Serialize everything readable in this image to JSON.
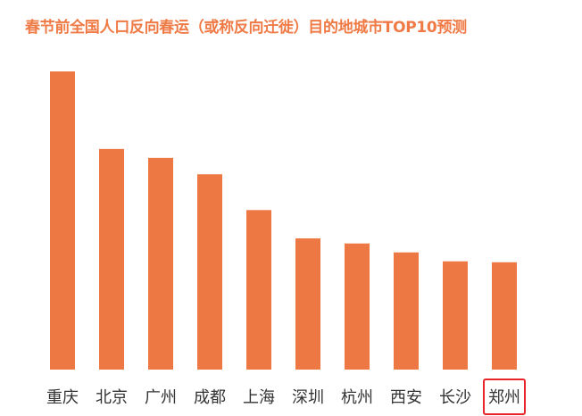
{
  "chart_data": {
    "type": "bar",
    "title": "春节前全国人口反向春运（或称反向迁徙）目的地城市TOP10预测",
    "categories": [
      "重庆",
      "北京",
      "广州",
      "成都",
      "上海",
      "深圳",
      "杭州",
      "西安",
      "长沙",
      "郑州"
    ],
    "values": [
      100,
      74,
      71,
      65.5,
      53.5,
      44,
      42.3,
      39.3,
      36.3,
      36
    ],
    "ylim": [
      0,
      100
    ],
    "xlabel": "",
    "ylabel": "",
    "grid": false,
    "highlighted_category": "郑州",
    "colors": {
      "bar": "#ee7843",
      "title": "#ef7a45",
      "highlight_box": "#e8262a"
    }
  }
}
